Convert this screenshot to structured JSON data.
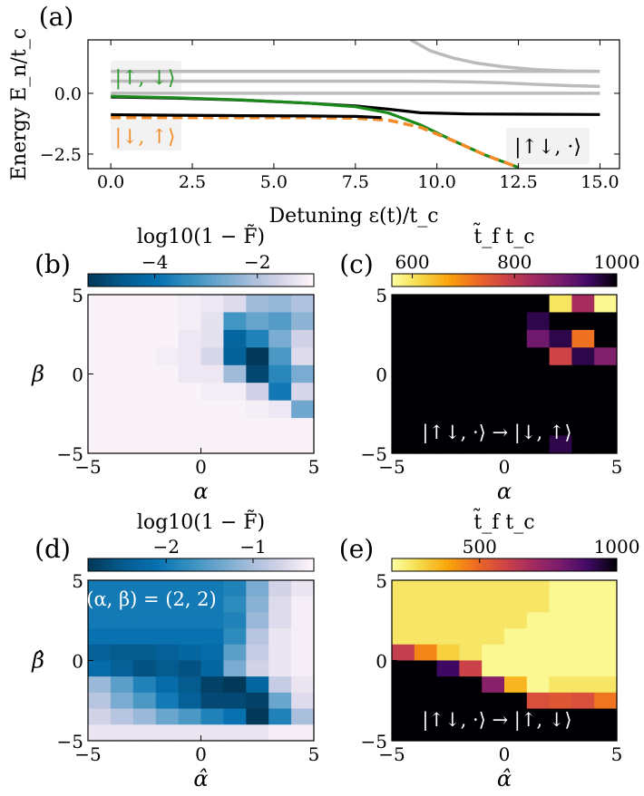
{
  "chart_data": [
    {
      "panel": "(a)",
      "type": "line",
      "xlabel": "Detuning ε(t)/t_c",
      "ylabel": "Energy E_n/t_c",
      "xlim": [
        -0.7,
        15.6
      ],
      "ylim": [
        -3.1,
        2.2
      ],
      "xticks": [
        "0.0",
        "2.5",
        "5.0",
        "7.5",
        "10.0",
        "12.5",
        "15.0"
      ],
      "xtick_values": [
        0,
        2.5,
        5,
        7.5,
        10,
        12.5,
        15
      ],
      "yticks": [
        "−2.5",
        "0.0"
      ],
      "ytick_values": [
        -2.5,
        0
      ],
      "annotations": [
        "|↑, ↓⟩",
        "|↓, ↑⟩",
        "|↑↓, ·⟩"
      ],
      "series": [
        {
          "name": "upper-curve",
          "color": "#bbbbbb",
          "x": [
            9.2,
            9.8,
            10.5,
            11.2,
            12.0,
            13.0,
            14.0,
            15.0
          ],
          "y": [
            2.2,
            1.75,
            1.45,
            1.25,
            1.1,
            0.98,
            0.92,
            0.9
          ]
        },
        {
          "name": "flat-gray-1",
          "color": "#bbbbbb",
          "x": [
            0,
            15
          ],
          "y": [
            0.9,
            0.9
          ]
        },
        {
          "name": "gray-2",
          "color": "#bbbbbb",
          "x": [
            0,
            9.0,
            10.0,
            11.0,
            12.0,
            13.0,
            14.0,
            15.0
          ],
          "y": [
            0.5,
            0.5,
            0.49,
            0.47,
            0.43,
            0.37,
            0.32,
            0.28
          ]
        },
        {
          "name": "flat-gray-3",
          "color": "#bbbbbb",
          "x": [
            0,
            15
          ],
          "y": [
            0.0,
            0.0
          ]
        },
        {
          "name": "black",
          "color": "#000000",
          "x": [
            0,
            2,
            4,
            6,
            7.5,
            8.5,
            9.5,
            11,
            13,
            15
          ],
          "y": [
            -0.15,
            -0.2,
            -0.28,
            -0.4,
            -0.52,
            -0.65,
            -0.8,
            -0.85,
            -0.86,
            -0.87
          ]
        },
        {
          "name": "green",
          "color": "#1a8a1a",
          "x": [
            0,
            2,
            4,
            6,
            7.5,
            8.5,
            9.5,
            10.5,
            11.5,
            12.5
          ],
          "y": [
            -0.12,
            -0.18,
            -0.27,
            -0.4,
            -0.55,
            -0.8,
            -1.3,
            -1.95,
            -2.55,
            -3.05
          ]
        },
        {
          "name": "orange-dashed",
          "color": "#f28c28",
          "x": [
            0,
            2,
            4,
            6,
            7.5,
            8.5,
            9.5,
            10.5,
            11.5,
            12.5
          ],
          "y": [
            -1.0,
            -1.0,
            -1.0,
            -1.0,
            -1.02,
            -1.1,
            -1.4,
            -1.95,
            -2.55,
            -3.05
          ]
        },
        {
          "name": "black-lower",
          "color": "#000000",
          "x": [
            0,
            2,
            4,
            6,
            7.5,
            8.3
          ],
          "y": [
            -0.88,
            -0.9,
            -0.92,
            -0.93,
            -0.95,
            -1.0
          ]
        }
      ]
    },
    {
      "panel": "(b)",
      "type": "heatmap",
      "xlabel": "α",
      "ylabel": "β",
      "xlim": [
        -5,
        5
      ],
      "ylim": [
        -5,
        5
      ],
      "xticks": [
        "−5",
        "0",
        "5"
      ],
      "yticks": [
        "−5",
        "0",
        "5"
      ],
      "colorbar_label": "log10(1 − F̃)",
      "colorbar_ticks": [
        "−4",
        "−2"
      ],
      "colorbar_tick_values": [
        -4,
        -2
      ],
      "colorbar_range": [
        -5.3,
        -0.9
      ],
      "colormap": "PuBu_r",
      "grid_x": 10,
      "grid_y": 9,
      "values": [
        [
          -1.0,
          -1.0,
          -1.0,
          -1.0,
          -1.1,
          -1.2,
          -1.4,
          -2.2,
          -2.3,
          -2.0
        ],
        [
          -1.0,
          -1.0,
          -1.0,
          -1.0,
          -1.1,
          -1.3,
          -3.2,
          -2.8,
          -3.0,
          -2.4
        ],
        [
          -1.0,
          -1.0,
          -1.0,
          -1.0,
          -1.2,
          -1.3,
          -4.3,
          -3.6,
          -2.6,
          -1.6
        ],
        [
          -1.0,
          -1.0,
          -1.0,
          -1.1,
          -1.2,
          -1.5,
          -4.4,
          -5.3,
          -3.1,
          -1.4
        ],
        [
          -1.0,
          -1.0,
          -1.0,
          -1.0,
          -1.2,
          -1.2,
          -2.2,
          -5.0,
          -3.5,
          -2.6
        ],
        [
          -1.0,
          -1.0,
          -1.0,
          -1.0,
          -1.0,
          -1.1,
          -1.1,
          -1.6,
          -3.8,
          -1.5
        ],
        [
          -1.0,
          -1.0,
          -1.0,
          -1.0,
          -1.0,
          -1.0,
          -1.0,
          -1.1,
          -1.2,
          -2.7
        ],
        [
          -1.0,
          -1.0,
          -1.0,
          -1.0,
          -1.0,
          -1.0,
          -1.0,
          -1.0,
          -1.0,
          -1.0
        ],
        [
          -1.0,
          -1.0,
          -1.0,
          -1.0,
          -1.0,
          -1.0,
          -1.0,
          -1.0,
          -1.0,
          -1.0
        ]
      ]
    },
    {
      "panel": "(c)",
      "type": "heatmap",
      "xlabel": "α",
      "ylabel": "",
      "xlim": [
        -5,
        5
      ],
      "ylim": [
        -5,
        5
      ],
      "xticks": [
        "−5",
        "0",
        "5"
      ],
      "yticks": [
        "−5",
        "0",
        "5"
      ],
      "colorbar_label": "t̃_f t_c",
      "colorbar_ticks": [
        "600",
        "800",
        "1000"
      ],
      "colorbar_tick_values": [
        600,
        800,
        1000
      ],
      "colorbar_range": [
        560,
        1000
      ],
      "colormap": "inferno_r",
      "annotation": "|↑↓, ·⟩ → |↓, ↑⟩",
      "grid_x": 10,
      "grid_y": 9,
      "values": [
        [
          1000,
          1000,
          1000,
          1000,
          1000,
          1000,
          1000,
          600,
          830,
          570
        ],
        [
          1000,
          1000,
          1000,
          1000,
          1000,
          1000,
          960,
          1000,
          1000,
          1000
        ],
        [
          1000,
          1000,
          1000,
          1000,
          1000,
          1000,
          900,
          960,
          720,
          1000
        ],
        [
          1000,
          1000,
          1000,
          1000,
          1000,
          1000,
          1000,
          780,
          960,
          880
        ],
        [
          1000,
          1000,
          1000,
          1000,
          1000,
          1000,
          1000,
          1000,
          1000,
          1000
        ],
        [
          1000,
          1000,
          1000,
          1000,
          1000,
          1000,
          1000,
          1000,
          1000,
          1000
        ],
        [
          1000,
          1000,
          1000,
          1000,
          1000,
          1000,
          1000,
          1000,
          1000,
          1000
        ],
        [
          1000,
          1000,
          1000,
          1000,
          1000,
          1000,
          1000,
          1000,
          1000,
          1000
        ],
        [
          1000,
          1000,
          1000,
          1000,
          1000,
          1000,
          1000,
          960,
          1000,
          1000
        ]
      ]
    },
    {
      "panel": "(d)",
      "type": "heatmap",
      "xlabel": "α̂",
      "ylabel": "β̂",
      "xlim": [
        -5,
        5
      ],
      "ylim": [
        -5,
        5
      ],
      "xticks": [
        "−5",
        "0",
        "5"
      ],
      "yticks": [
        "−5",
        "0",
        "5"
      ],
      "colorbar_label": "log10(1 − F̃)",
      "colorbar_ticks": [
        "−2",
        "−1"
      ],
      "colorbar_tick_values": [
        -2,
        -1
      ],
      "colorbar_range": [
        -2.9,
        -0.3
      ],
      "colormap": "PuBu_r",
      "annotation": "(α, β) = (2, 2)",
      "grid_x": 10,
      "grid_y": 10,
      "values": [
        [
          -2.0,
          -2.0,
          -2.0,
          -2.0,
          -2.0,
          -2.0,
          -1.9,
          -1.3,
          -0.7,
          -0.5
        ],
        [
          -2.0,
          -2.0,
          -2.0,
          -2.0,
          -2.0,
          -2.0,
          -1.8,
          -1.2,
          -0.6,
          -0.4
        ],
        [
          -2.0,
          -2.0,
          -2.0,
          -2.0,
          -2.0,
          -2.0,
          -1.9,
          -1.1,
          -0.6,
          -0.4
        ],
        [
          -2.1,
          -2.1,
          -2.1,
          -2.1,
          -2.1,
          -2.1,
          -1.8,
          -0.9,
          -0.5,
          -0.4
        ],
        [
          -2.4,
          -2.5,
          -2.5,
          -2.4,
          -2.3,
          -2.2,
          -1.5,
          -0.8,
          -0.5,
          -0.4
        ],
        [
          -2.2,
          -2.4,
          -2.6,
          -2.5,
          -2.6,
          -2.3,
          -1.3,
          -0.7,
          -0.5,
          -0.4
        ],
        [
          -1.1,
          -1.5,
          -1.9,
          -2.2,
          -2.5,
          -2.8,
          -2.9,
          -2.3,
          -0.8,
          -0.5
        ],
        [
          -0.9,
          -1.3,
          -1.6,
          -2.0,
          -2.4,
          -2.7,
          -2.7,
          -2.8,
          -1.4,
          -0.6
        ],
        [
          -0.7,
          -0.9,
          -1.1,
          -1.4,
          -1.6,
          -1.9,
          -2.1,
          -2.9,
          -1.9,
          -1.0
        ],
        [
          -0.5,
          -0.5,
          -0.5,
          -0.5,
          -0.5,
          -0.5,
          -0.5,
          -0.5,
          -0.4,
          -0.4
        ]
      ]
    },
    {
      "panel": "(e)",
      "type": "heatmap",
      "xlabel": "α̂",
      "ylabel": "",
      "xlim": [
        -5,
        5
      ],
      "ylim": [
        -5,
        5
      ],
      "xticks": [
        "−5",
        "0",
        "5"
      ],
      "yticks": [
        "−5",
        "0",
        "5"
      ],
      "colorbar_label": "t̃_f t_c",
      "colorbar_ticks": [
        "500",
        "1000"
      ],
      "colorbar_tick_values": [
        500,
        1000
      ],
      "colorbar_range": [
        180,
        1000
      ],
      "colormap": "inferno_r",
      "annotation": "|↑↓, ·⟩ → |↑, ↓⟩",
      "grid_x": 10,
      "grid_y": 10,
      "values": [
        [
          250,
          250,
          250,
          250,
          250,
          250,
          250,
          200,
          200,
          200
        ],
        [
          250,
          250,
          250,
          250,
          250,
          250,
          250,
          200,
          200,
          200
        ],
        [
          250,
          250,
          250,
          250,
          250,
          250,
          200,
          200,
          200,
          200
        ],
        [
          250,
          250,
          250,
          250,
          250,
          200,
          200,
          200,
          200,
          200
        ],
        [
          620,
          440,
          300,
          250,
          200,
          200,
          200,
          200,
          200,
          200
        ],
        [
          1000,
          1000,
          900,
          600,
          200,
          200,
          200,
          200,
          200,
          200
        ],
        [
          1000,
          1000,
          1000,
          1000,
          760,
          350,
          200,
          250,
          250,
          250
        ],
        [
          1000,
          1000,
          1000,
          1000,
          1000,
          1000,
          560,
          540,
          560,
          470
        ],
        [
          1000,
          1000,
          1000,
          1000,
          1000,
          1000,
          1000,
          1000,
          1000,
          1000
        ],
        [
          1000,
          1000,
          1000,
          1000,
          1000,
          1000,
          1000,
          1000,
          1000,
          1000
        ]
      ]
    }
  ],
  "labels": {
    "a": "(a)",
    "b": "(b)",
    "c": "(c)",
    "d": "(d)",
    "e": "(e)"
  }
}
